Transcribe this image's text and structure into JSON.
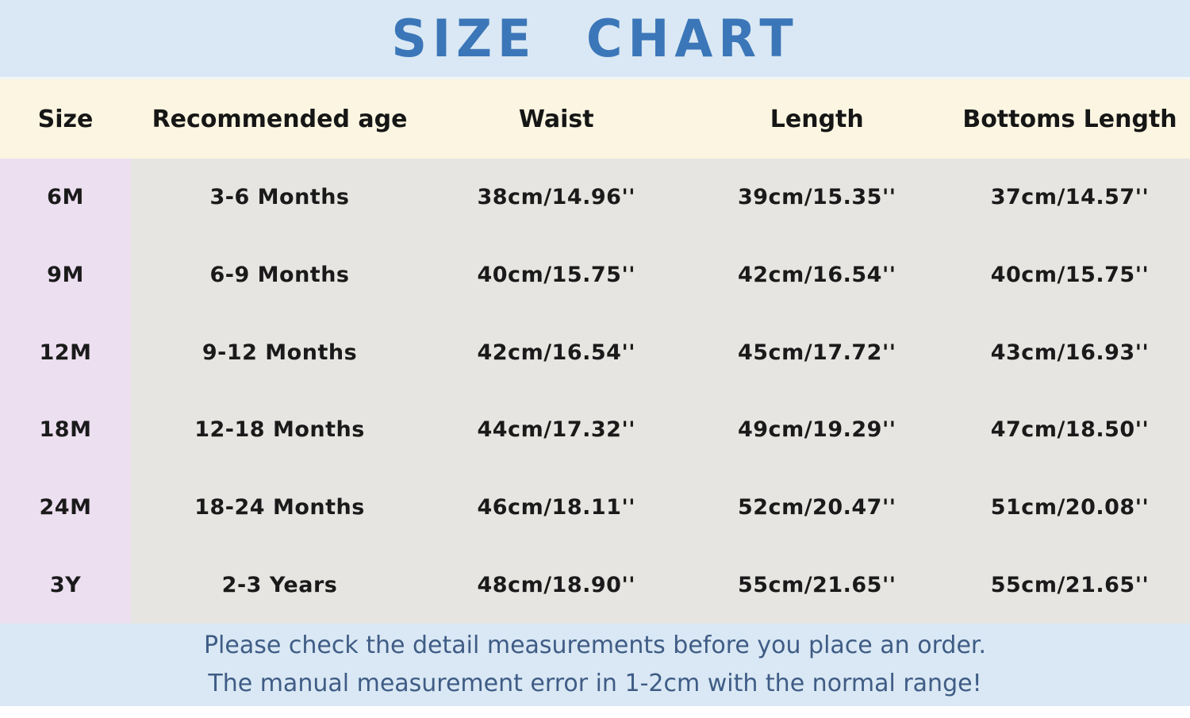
{
  "title": "SIZE CHART",
  "colors": {
    "band_bg": "#d9e8f4",
    "header_bg": "#fbf5e1",
    "size_column_bg": "#ecdff0",
    "body_bg": "#e6e5e2",
    "title_color": "#3b76b8",
    "footer_text_color": "#3f5c85",
    "body_text_color": "#1a1a1a"
  },
  "table": {
    "columns": [
      "Size",
      "Recommended age",
      "Waist",
      "Length",
      "Bottoms Length"
    ],
    "rows": [
      [
        "6M",
        "3-6 Months",
        "38cm/14.96''",
        "39cm/15.35''",
        "37cm/14.57''"
      ],
      [
        "9M",
        "6-9 Months",
        "40cm/15.75''",
        "42cm/16.54''",
        "40cm/15.75''"
      ],
      [
        "12M",
        "9-12 Months",
        "42cm/16.54''",
        "45cm/17.72''",
        "43cm/16.93''"
      ],
      [
        "18M",
        "12-18 Months",
        "44cm/17.32''",
        "49cm/19.29''",
        "47cm/18.50''"
      ],
      [
        "24M",
        "18-24 Months",
        "46cm/18.11''",
        "52cm/20.47''",
        "51cm/20.08''"
      ],
      [
        "3Y",
        "2-3 Years",
        "48cm/18.90''",
        "55cm/21.65''",
        "55cm/21.65''"
      ]
    ]
  },
  "footer": {
    "line1": "Please check the detail measurements before you place an order.",
    "line2": "The manual measurement error in 1-2cm with the normal range!"
  },
  "chart_data": {
    "type": "table",
    "title": "SIZE CHART",
    "columns": [
      "Size",
      "Recommended age",
      "Waist",
      "Length",
      "Bottoms Length"
    ],
    "rows": [
      [
        "6M",
        "3-6 Months",
        "38cm/14.96''",
        "39cm/15.35''",
        "37cm/14.57''"
      ],
      [
        "9M",
        "6-9 Months",
        "40cm/15.75''",
        "42cm/16.54''",
        "40cm/15.75''"
      ],
      [
        "12M",
        "9-12 Months",
        "42cm/16.54''",
        "45cm/17.72''",
        "43cm/16.93''"
      ],
      [
        "18M",
        "12-18 Months",
        "44cm/17.32''",
        "49cm/19.29''",
        "47cm/18.50''"
      ],
      [
        "24M",
        "18-24 Months",
        "46cm/18.11''",
        "52cm/20.47''",
        "51cm/20.08''"
      ],
      [
        "3Y",
        "2-3 Years",
        "48cm/18.90''",
        "55cm/21.65''",
        "55cm/21.65''"
      ]
    ],
    "units": {
      "waist": "cm/inches",
      "length": "cm/inches",
      "bottoms_length": "cm/inches"
    },
    "notes": [
      "Please check the detail measurements before you place an order.",
      "The manual measurement error in 1-2cm with the normal range!"
    ]
  }
}
